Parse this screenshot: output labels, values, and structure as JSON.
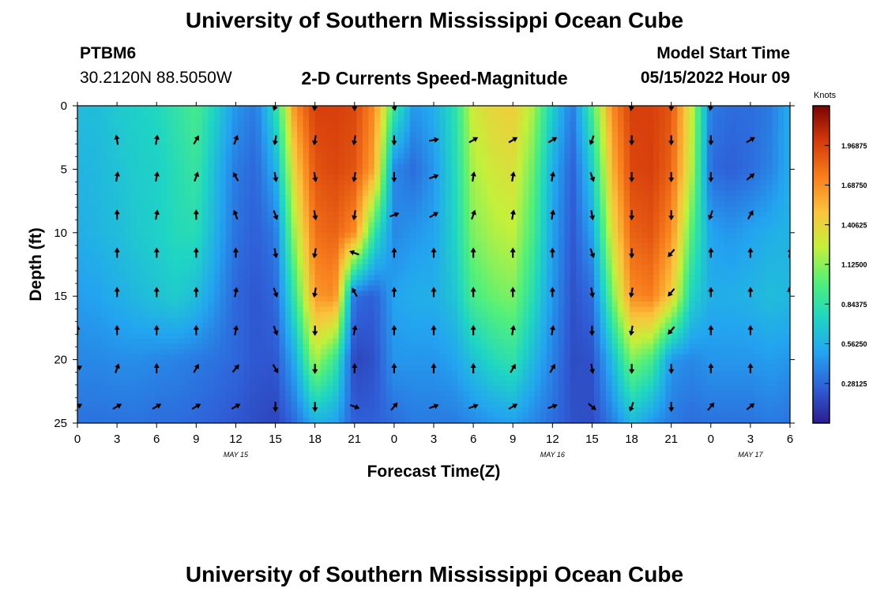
{
  "page": {
    "title": "University of Southern Mississippi Ocean Cube",
    "footer_title": "University of Southern Mississippi Ocean Cube",
    "station_id": "PTBM6",
    "station_coords": "30.2120N  88.5050W",
    "subtitle": "2-D Currents Speed-Magnitude",
    "model_start_label": "Model Start Time",
    "model_start_value": "05/15/2022 Hour 09"
  },
  "chart_data": {
    "type": "heatmap",
    "title": "2-D Currents Speed-Magnitude",
    "xlabel": "Forecast Time(Z)",
    "ylabel": "Depth (ft)",
    "x_ticks": [
      "0",
      "3",
      "6",
      "9",
      "12",
      "15",
      "18",
      "21",
      "0",
      "3",
      "6",
      "9",
      "12",
      "15",
      "18",
      "21",
      "0",
      "3",
      "6"
    ],
    "x_tick_hours": [
      0,
      3,
      6,
      9,
      12,
      15,
      18,
      21,
      24,
      27,
      30,
      33,
      36,
      39,
      42,
      45,
      48,
      51,
      54
    ],
    "x_range_hours": [
      0,
      54
    ],
    "date_labels": [
      {
        "text": "MAY 15",
        "hour": 12
      },
      {
        "text": "MAY 16",
        "hour": 36
      },
      {
        "text": "MAY 17",
        "hour": 51
      }
    ],
    "y_ticks": [
      "0",
      "5",
      "10",
      "15",
      "20",
      "25"
    ],
    "y_tick_values": [
      0,
      5,
      10,
      15,
      20,
      25
    ],
    "ylim": [
      0,
      25
    ],
    "y_inverted": true,
    "colorbar": {
      "unit": "Knots",
      "labels": [
        "1.96875",
        "1.68750",
        "1.40625",
        "1.12500",
        "0.84375",
        "0.56250",
        "0.28125"
      ],
      "label_values": [
        1.96875,
        1.6875,
        1.40625,
        1.125,
        0.84375,
        0.5625,
        0.28125
      ],
      "range": [
        0,
        2.25
      ],
      "colors": [
        "#2c1d8e",
        "#2f5fd8",
        "#23a4f0",
        "#1fd6c2",
        "#52f07a",
        "#c4f03a",
        "#fbc33c",
        "#f77d1c",
        "#d43a0a",
        "#7a0403"
      ]
    },
    "heatmap_hours": [
      0,
      1.5,
      3,
      4.5,
      6,
      7.5,
      9,
      10.5,
      12,
      13.5,
      15,
      16.5,
      18,
      19.5,
      21,
      22.5,
      24,
      25.5,
      27,
      28.5,
      30,
      31.5,
      33,
      34.5,
      36,
      37.5,
      39,
      40.5,
      42,
      43.5,
      45,
      46.5,
      48,
      49.5,
      51,
      52.5,
      54
    ],
    "heatmap_depths": [
      0,
      5,
      10,
      15,
      20,
      25
    ],
    "speed_rows": [
      [
        0.62,
        0.62,
        0.68,
        0.72,
        0.76,
        0.85,
        0.95,
        0.72,
        0.45,
        0.35,
        0.8,
        1.7,
        1.98,
        1.98,
        1.95,
        1.7,
        0.9,
        0.45,
        0.55,
        0.8,
        1.3,
        1.4,
        1.45,
        1.2,
        0.7,
        0.35,
        0.95,
        1.7,
        1.98,
        1.98,
        1.9,
        1.3,
        0.35,
        0.3,
        0.3,
        0.35,
        0.55
      ],
      [
        0.58,
        0.6,
        0.65,
        0.7,
        0.72,
        0.8,
        0.88,
        0.6,
        0.35,
        0.28,
        0.55,
        1.45,
        1.9,
        1.95,
        1.9,
        1.6,
        0.4,
        0.3,
        0.45,
        0.75,
        1.2,
        1.3,
        1.35,
        1.05,
        0.55,
        0.25,
        0.7,
        1.55,
        1.95,
        1.98,
        1.85,
        1.25,
        0.3,
        0.25,
        0.3,
        0.38,
        0.55
      ],
      [
        0.55,
        0.58,
        0.62,
        0.68,
        0.72,
        0.78,
        0.8,
        0.55,
        0.32,
        0.25,
        0.35,
        1.2,
        1.8,
        1.85,
        1.7,
        0.85,
        0.4,
        0.45,
        0.5,
        0.72,
        1.1,
        1.2,
        1.25,
        0.95,
        0.5,
        0.22,
        0.5,
        1.35,
        1.85,
        1.9,
        1.7,
        1.0,
        0.5,
        0.45,
        0.5,
        0.55,
        0.58
      ],
      [
        0.48,
        0.5,
        0.55,
        0.6,
        0.65,
        0.7,
        0.62,
        0.45,
        0.28,
        0.22,
        0.28,
        0.9,
        1.65,
        1.7,
        0.3,
        0.25,
        0.5,
        0.55,
        0.55,
        0.65,
        0.95,
        1.05,
        1.1,
        0.8,
        0.45,
        0.2,
        0.3,
        1.05,
        1.7,
        1.75,
        1.45,
        0.75,
        0.55,
        0.55,
        0.58,
        0.62,
        0.6
      ],
      [
        0.4,
        0.4,
        0.42,
        0.42,
        0.4,
        0.38,
        0.35,
        0.32,
        0.28,
        0.22,
        0.22,
        0.55,
        1.2,
        0.9,
        0.15,
        0.2,
        0.45,
        0.45,
        0.45,
        0.5,
        0.65,
        0.78,
        0.85,
        0.6,
        0.38,
        0.18,
        0.2,
        0.6,
        1.1,
        0.95,
        0.45,
        0.4,
        0.45,
        0.45,
        0.45,
        0.48,
        0.45
      ],
      [
        0.32,
        0.32,
        0.32,
        0.32,
        0.3,
        0.3,
        0.28,
        0.25,
        0.22,
        0.18,
        0.15,
        0.3,
        0.55,
        0.5,
        0.25,
        0.25,
        0.3,
        0.35,
        0.35,
        0.35,
        0.4,
        0.45,
        0.48,
        0.4,
        0.3,
        0.2,
        0.18,
        0.35,
        0.6,
        0.45,
        0.35,
        0.3,
        0.32,
        0.32,
        0.32,
        0.35,
        0.32
      ]
    ],
    "vector_hours": [
      0,
      3,
      6,
      9,
      12,
      15,
      18,
      21,
      24,
      27,
      30,
      33,
      36,
      39,
      42,
      45,
      48,
      51,
      54
    ],
    "vector_depths": [
      0,
      2.7,
      5.6,
      8.6,
      11.6,
      14.7,
      17.7,
      20.7,
      23.7
    ],
    "vector_rows": [
      [
        null,
        null,
        null,
        null,
        null,
        200,
        190,
        180,
        170,
        null,
        null,
        null,
        null,
        null,
        190,
        180,
        190,
        null,
        null
      ],
      [
        null,
        350,
        10,
        30,
        20,
        190,
        190,
        190,
        180,
        80,
        60,
        60,
        60,
        200,
        180,
        180,
        180,
        60,
        null
      ],
      [
        null,
        10,
        10,
        20,
        330,
        170,
        170,
        190,
        180,
        70,
        10,
        10,
        10,
        160,
        180,
        180,
        180,
        50,
        null
      ],
      [
        null,
        0,
        10,
        0,
        340,
        160,
        170,
        190,
        70,
        60,
        20,
        10,
        10,
        170,
        180,
        180,
        200,
        30,
        null
      ],
      [
        null,
        0,
        0,
        0,
        0,
        170,
        190,
        290,
        0,
        0,
        0,
        0,
        0,
        160,
        180,
        220,
        0,
        0,
        10
      ],
      [
        null,
        0,
        0,
        0,
        10,
        160,
        190,
        330,
        0,
        0,
        0,
        0,
        0,
        170,
        190,
        220,
        0,
        0,
        350
      ],
      [
        0,
        0,
        0,
        0,
        10,
        160,
        180,
        10,
        0,
        0,
        0,
        10,
        10,
        180,
        190,
        220,
        0,
        0,
        null
      ],
      [
        60,
        20,
        0,
        30,
        40,
        150,
        180,
        0,
        0,
        0,
        0,
        30,
        30,
        170,
        180,
        180,
        0,
        0,
        null
      ],
      [
        60,
        60,
        60,
        60,
        60,
        180,
        180,
        110,
        40,
        70,
        70,
        60,
        70,
        130,
        200,
        180,
        40,
        50,
        null
      ]
    ]
  }
}
